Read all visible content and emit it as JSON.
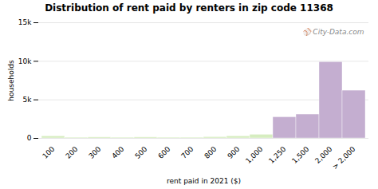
{
  "chart_data": {
    "type": "bar",
    "title": "Distribution of rent paid by renters in zip code 11368",
    "xlabel": "rent paid in 2021 ($)",
    "ylabel": "households",
    "categories": [
      "100",
      "200",
      "300",
      "400",
      "500",
      "600",
      "700",
      "800",
      "900",
      "1,000",
      "1,250",
      "1,500",
      "2,000",
      "> 2,000"
    ],
    "values": [
      280,
      100,
      130,
      100,
      130,
      100,
      100,
      170,
      280,
      480,
      2750,
      3100,
      9900,
      6200
    ],
    "colors": [
      "#d6edc0",
      "#d6edc0",
      "#d6edc0",
      "#d6edc0",
      "#d6edc0",
      "#d6edc0",
      "#d6edc0",
      "#d6edc0",
      "#d6edc0",
      "#d6edc0",
      "#c4aed0",
      "#c4aed0",
      "#c4aed0",
      "#c4aed0"
    ],
    "ylim": [
      0,
      15000
    ],
    "yticks": [
      0,
      {
        "value": 5000,
        "label": "5k"
      },
      {
        "value": 10000,
        "label": "10k"
      },
      {
        "value": 15000,
        "label": "15k"
      }
    ],
    "grid": true,
    "annotations": [
      "⚾ City-Data.com"
    ]
  }
}
